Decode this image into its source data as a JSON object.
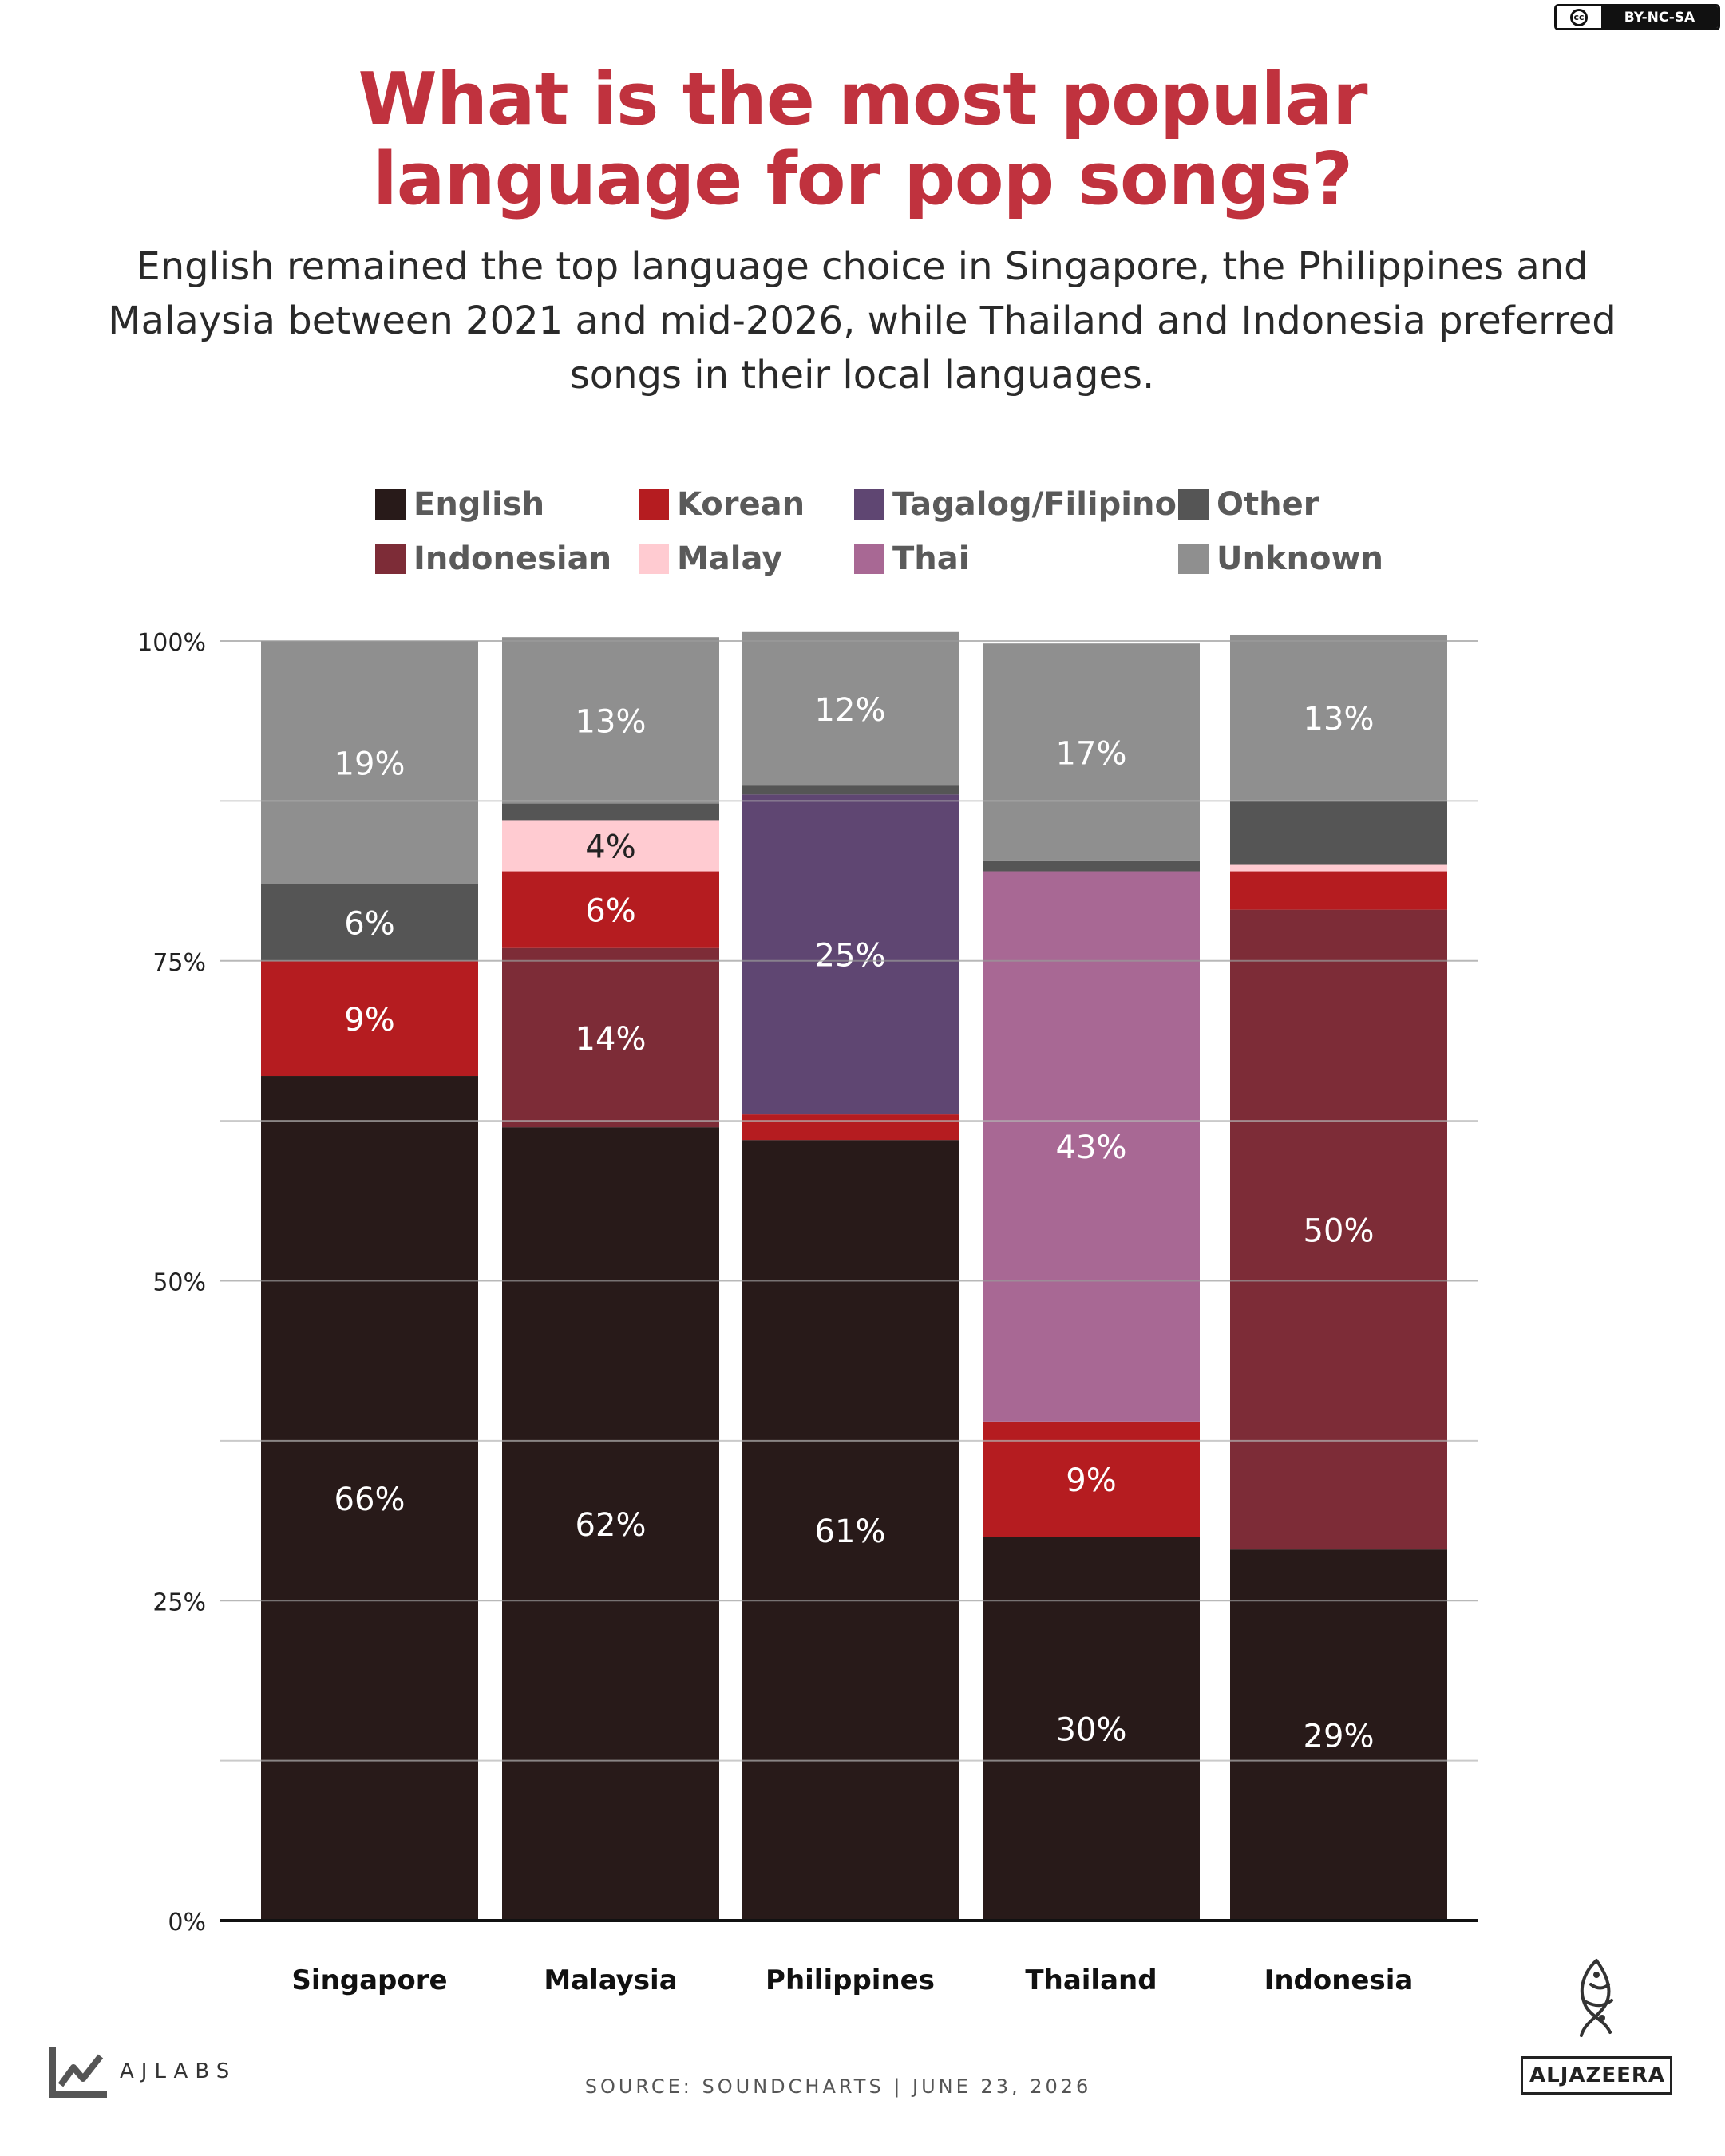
{
  "license": {
    "cc": "cc",
    "text": "BY-NC-SA"
  },
  "header": {
    "title_line1": "What is the most popular",
    "title_line2": "language for pop songs?",
    "subtitle": "English remained the top language choice in Singapore, the Philippines and Malaysia between 2021 and mid-2026, while Thailand and Indonesia preferred songs in their local languages."
  },
  "legend": [
    {
      "label": "English",
      "color": "#281a19"
    },
    {
      "label": "Korean",
      "color": "#b51c20"
    },
    {
      "label": "Tagalog/Filipino",
      "color": "#5f4672"
    },
    {
      "label": "Other",
      "color": "#555555"
    },
    {
      "label": "Indonesian",
      "color": "#7d2c37"
    },
    {
      "label": "Malay",
      "color": "#ffcbd1"
    },
    {
      "label": "Thai",
      "color": "#a86894"
    },
    {
      "label": "Unknown",
      "color": "#8f8f8f"
    }
  ],
  "chart_data": {
    "type": "bar",
    "stacked": true,
    "categories": [
      "Singapore",
      "Malaysia",
      "Philippines",
      "Thailand",
      "Indonesia"
    ],
    "y_ticks": [
      "0%",
      "25%",
      "50%",
      "75%",
      "100%"
    ],
    "ylim": [
      0,
      100
    ],
    "series": [
      {
        "name": "English",
        "color": "#281a19",
        "values": [
          66,
          62,
          61,
          30,
          29
        ],
        "labels": [
          "66%",
          "62%",
          "61%",
          "30%",
          "29%"
        ]
      },
      {
        "name": "Indonesian",
        "color": "#7d2c37",
        "values": [
          0,
          14,
          0,
          0,
          50
        ],
        "labels": [
          "",
          "14%",
          "",
          "",
          "50%"
        ]
      },
      {
        "name": "Korean",
        "color": "#b51c20",
        "values": [
          9,
          6,
          2,
          9,
          3
        ],
        "labels": [
          "9%",
          "6%",
          "",
          "9%",
          ""
        ]
      },
      {
        "name": "Malay",
        "color": "#ffcbd1",
        "values": [
          0,
          4,
          0,
          0,
          0.5
        ],
        "labels": [
          "",
          "4%",
          "",
          "",
          ""
        ]
      },
      {
        "name": "Tagalog/Filipino",
        "color": "#5f4672",
        "values": [
          0,
          0,
          25,
          0,
          0
        ],
        "labels": [
          "",
          "",
          "25%",
          "",
          ""
        ]
      },
      {
        "name": "Thai",
        "color": "#a86894",
        "values": [
          0,
          0,
          0,
          43,
          0
        ],
        "labels": [
          "",
          "",
          "",
          "43%",
          ""
        ]
      },
      {
        "name": "Other",
        "color": "#555555",
        "values": [
          6,
          1.3,
          0.7,
          0.8,
          5
        ],
        "labels": [
          "6%",
          "",
          "",
          "",
          ""
        ]
      },
      {
        "name": "Unknown",
        "color": "#8f8f8f",
        "values": [
          19,
          13,
          12,
          17,
          13
        ],
        "labels": [
          "19%",
          "13%",
          "12%",
          "17%",
          "13%"
        ]
      }
    ]
  },
  "footer": {
    "source": "SOURCE: SOUNDCHARTS  |  JUNE 23, 2026",
    "ajlabs": "AJLABS",
    "aljazeera": "ALJAZEERA"
  }
}
